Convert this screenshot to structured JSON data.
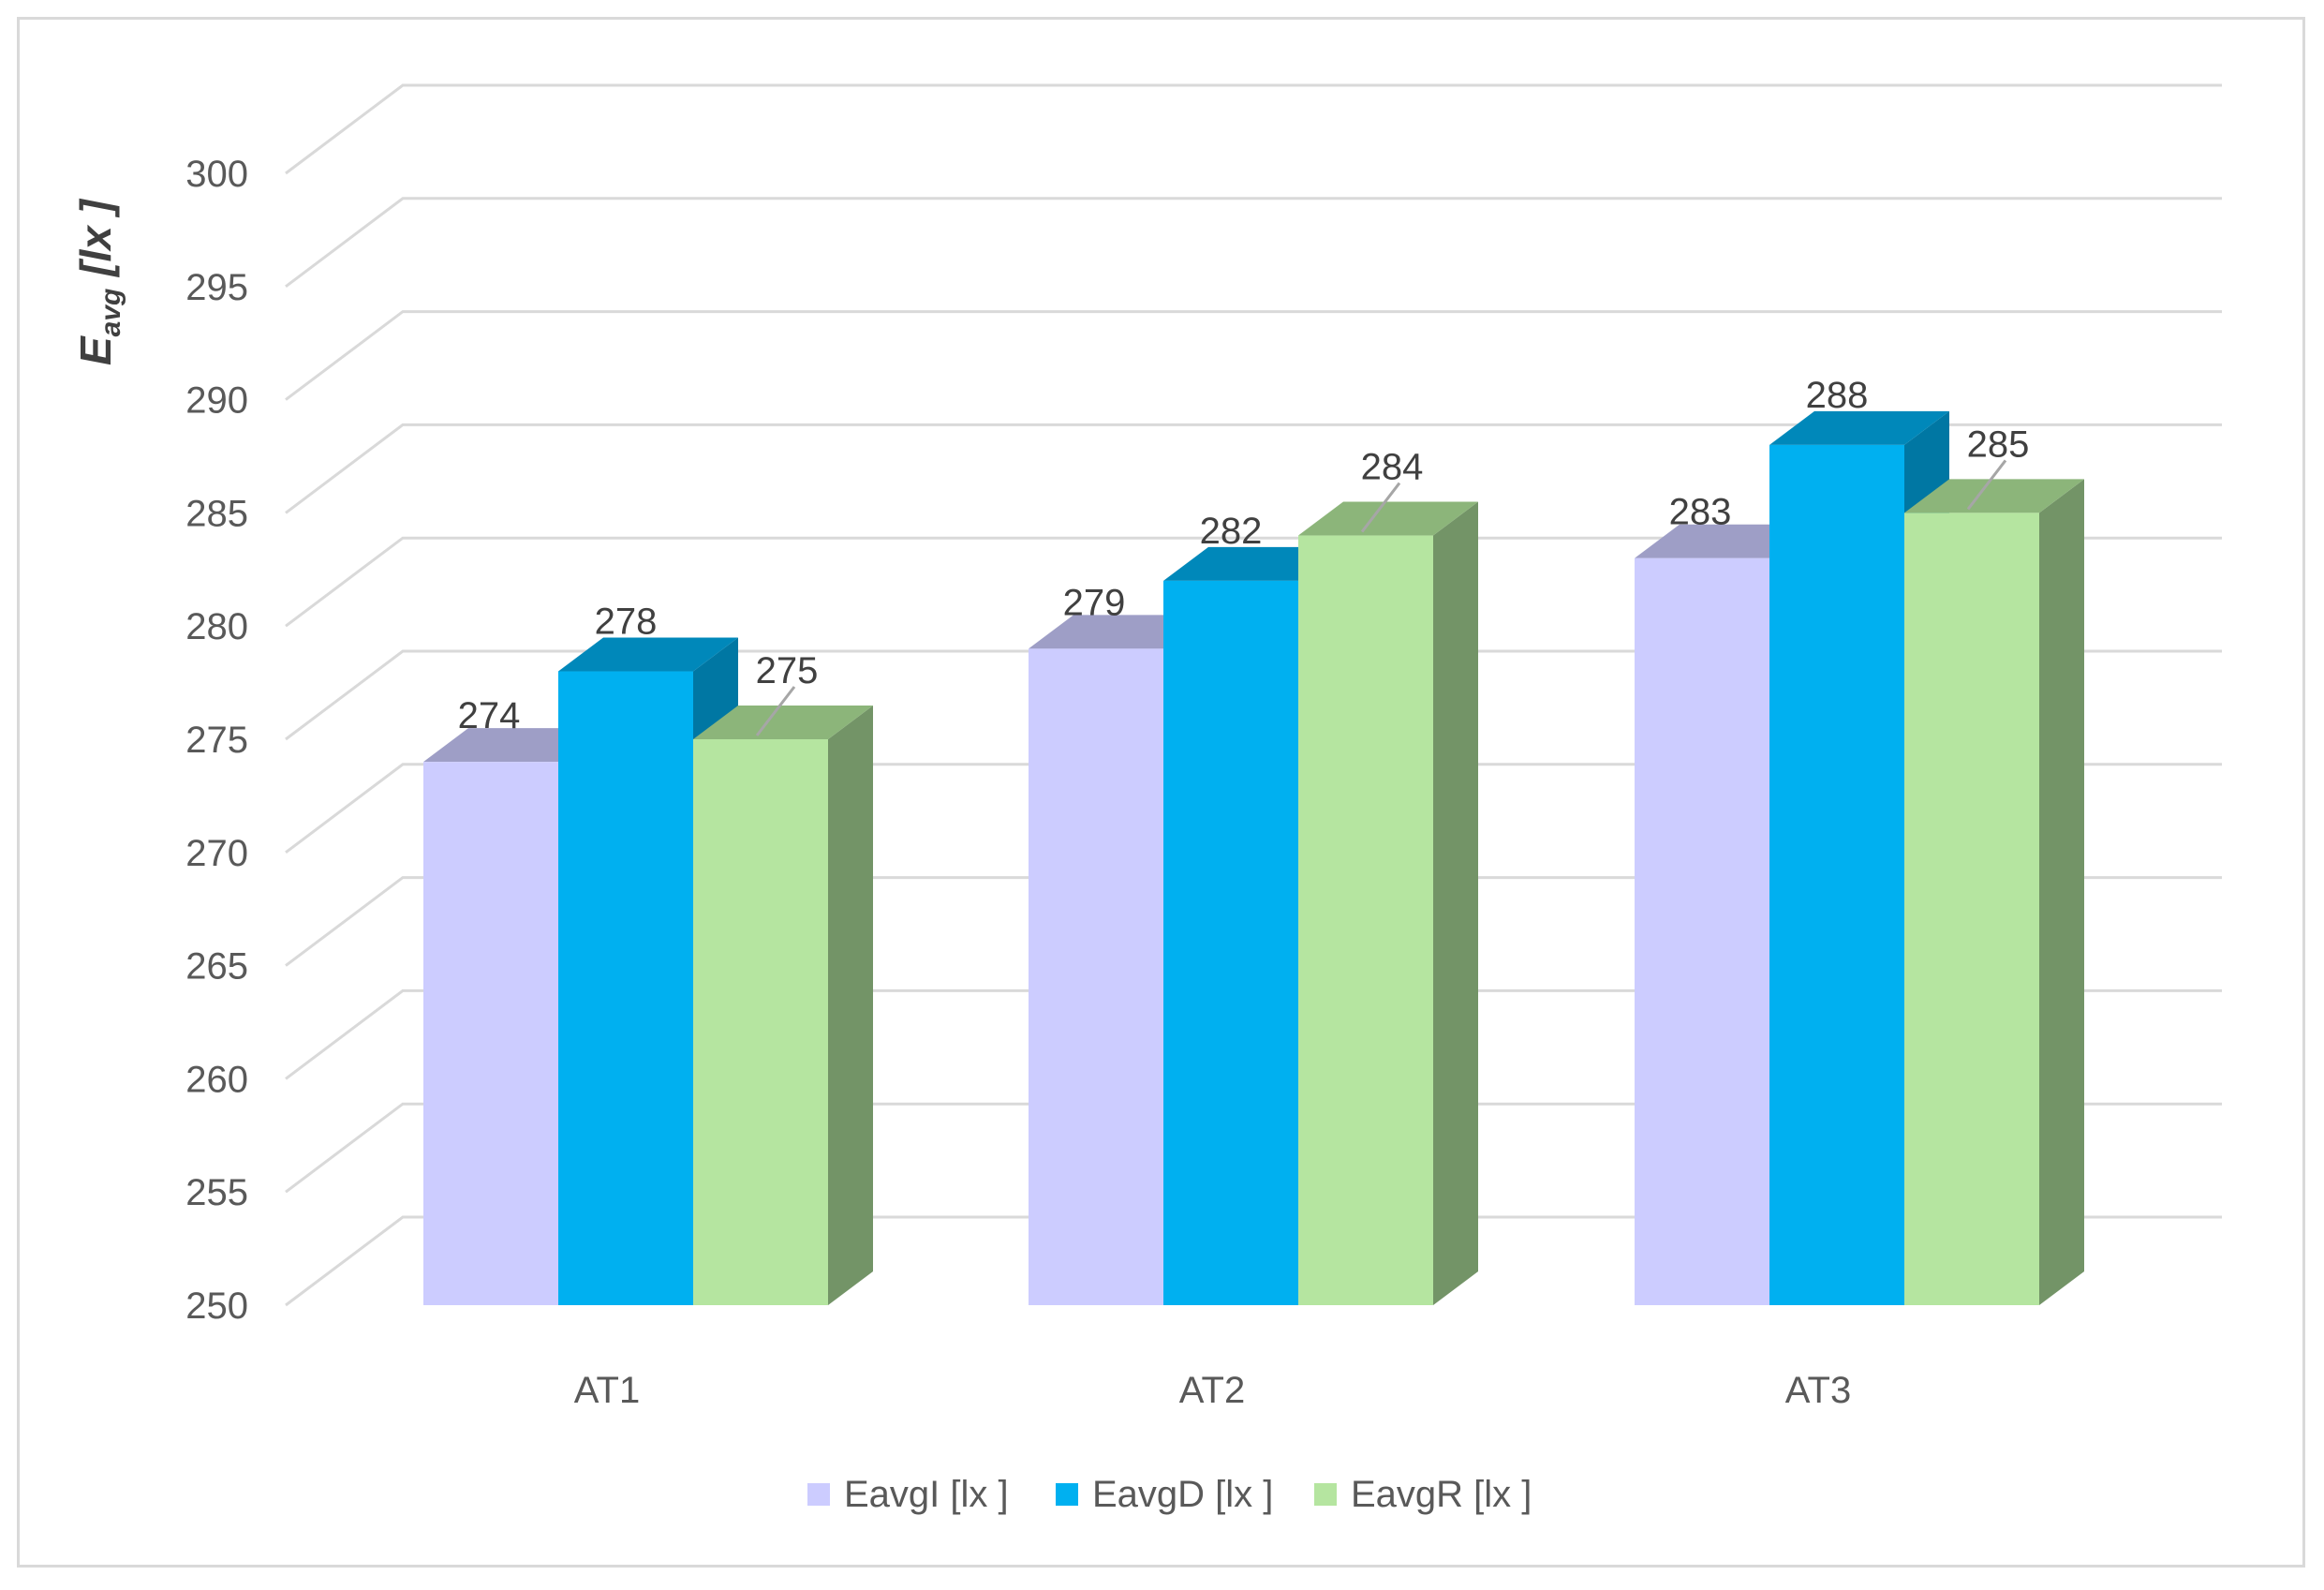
{
  "chart_data": {
    "type": "bar",
    "subtype": "3d-clustered-column",
    "categories": [
      "AT1",
      "AT2",
      "AT3"
    ],
    "series": [
      {
        "name": "EavgI [lx ]",
        "values": [
          274,
          279,
          283
        ],
        "color": "#ccccff",
        "top_color": "#9e9ec6",
        "side_color": "#9e9ec6"
      },
      {
        "name": "EavgD [lx ]",
        "values": [
          278,
          282,
          288
        ],
        "color": "#00b0f0",
        "top_color": "#0088ba",
        "side_color": "#0077a3"
      },
      {
        "name": "EavgR [lx ]",
        "values": [
          275,
          284,
          285
        ],
        "color": "#b5e5a0",
        "top_color": "#8cb57a",
        "side_color": "#739467"
      }
    ],
    "ylim": [
      250,
      300
    ],
    "ytick_step": 5,
    "yticks": [
      "250",
      "255",
      "260",
      "265",
      "270",
      "275",
      "280",
      "285",
      "290",
      "295",
      "300"
    ],
    "ylabel": {
      "main": "E",
      "sub": "avg",
      "unit": " [lx ]"
    },
    "grid": true,
    "legend_position": "bottom"
  }
}
